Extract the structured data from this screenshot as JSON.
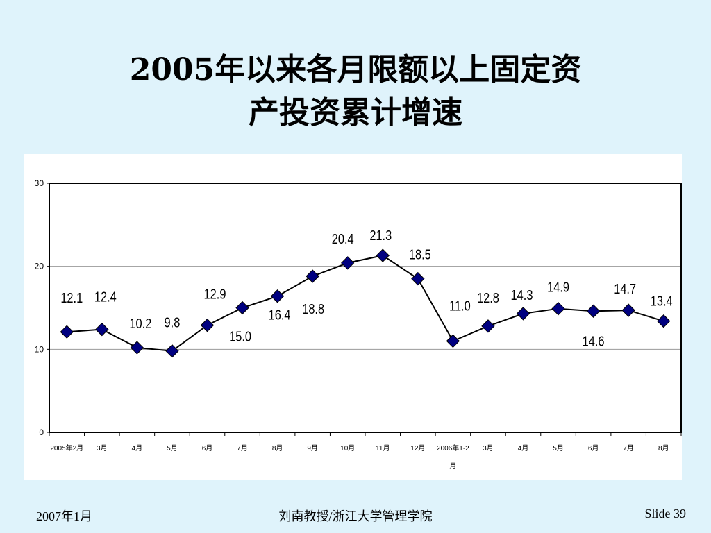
{
  "slide": {
    "title_line1": "2005年以来各月限额以上固定资",
    "title_line2": "产投资累计增速",
    "footer_left": "2007年1月",
    "footer_center": "刘南教授/浙江大学管理学院",
    "footer_right": "Slide 39"
  },
  "chart_data": {
    "type": "line",
    "title": "",
    "xlabel": "",
    "ylabel": "",
    "ylim": [
      0,
      30
    ],
    "yticks": [
      "0",
      "10",
      "20",
      "30"
    ],
    "grid": true,
    "categories": [
      "2005年2月",
      "3月",
      "4月",
      "5月",
      "6月",
      "7月",
      "8月",
      "9月",
      "10月",
      "11月",
      "12月",
      "2006年1-2月",
      "3月",
      "4月",
      "5月",
      "6月",
      "7月",
      "8月"
    ],
    "series": [
      {
        "name": "",
        "values": [
          12.1,
          12.4,
          10.2,
          9.8,
          12.9,
          15.0,
          16.4,
          18.8,
          20.4,
          21.3,
          18.5,
          11.0,
          12.8,
          14.3,
          14.9,
          14.6,
          14.7,
          13.4
        ],
        "labels": [
          "12.1",
          "12.4",
          "10.2",
          "9.8",
          "12.9",
          "15.0",
          "16.4",
          "18.8",
          "20.4",
          "21.3",
          "18.5",
          "11.0",
          "12.8",
          "14.3",
          "14.9",
          "14.6",
          "14.7",
          "13.4"
        ],
        "color": "#000080",
        "line_color": "#000000"
      }
    ]
  }
}
